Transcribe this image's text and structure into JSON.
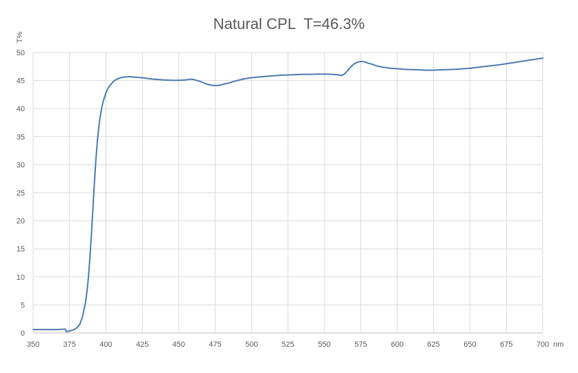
{
  "chart_data": {
    "type": "line",
    "title": "Natural CPL  T=46.3%",
    "ylabel": "T%",
    "xlabel": "nm",
    "xlim": [
      350,
      700
    ],
    "ylim": [
      0,
      50
    ],
    "x_ticks": [
      "350",
      "375",
      "400",
      "425",
      "450",
      "475",
      "500",
      "525",
      "550",
      "575",
      "600",
      "625",
      "650",
      "675",
      "700"
    ],
    "y_ticks": [
      "0",
      "5",
      "10",
      "15",
      "20",
      "25",
      "30",
      "35",
      "40",
      "45",
      "50"
    ],
    "x_tick_values": [
      350,
      375,
      400,
      425,
      450,
      475,
      500,
      525,
      550,
      575,
      600,
      625,
      650,
      675,
      700
    ],
    "y_tick_values": [
      0,
      5,
      10,
      15,
      20,
      25,
      30,
      35,
      40,
      45,
      50
    ],
    "grid": true,
    "line_color": "#4a7ab2",
    "grid_color": "#d9d9d9",
    "series": [
      {
        "x": [
          350,
          355,
          360,
          365,
          370,
          372,
          373,
          374,
          376,
          378,
          380,
          382,
          384,
          386,
          387,
          388,
          389,
          390,
          391,
          392,
          393,
          394,
          395,
          396,
          397,
          398,
          399,
          400,
          401,
          402,
          403,
          404,
          405,
          406,
          407,
          408,
          410,
          412,
          414,
          416,
          418,
          420,
          422,
          425,
          428,
          430,
          435,
          440,
          445,
          450,
          455,
          458,
          460,
          462,
          465,
          468,
          470,
          473,
          476,
          478,
          480,
          485,
          490,
          495,
          500,
          505,
          510,
          515,
          520,
          525,
          530,
          535,
          540,
          545,
          550,
          555,
          560,
          562,
          564,
          566,
          568,
          570,
          572,
          574,
          576,
          578,
          580,
          583,
          586,
          590,
          595,
          600,
          605,
          610,
          615,
          620,
          625,
          630,
          640,
          650,
          660,
          670,
          680,
          690,
          700
        ],
        "y": [
          0.6,
          0.6,
          0.6,
          0.6,
          0.65,
          0.7,
          0.2,
          0.3,
          0.4,
          0.6,
          0.9,
          1.5,
          3.0,
          5.5,
          7.5,
          10.0,
          13.5,
          17.5,
          22.0,
          26.5,
          30.5,
          34.0,
          36.5,
          38.5,
          40.0,
          41.2,
          42.0,
          42.8,
          43.4,
          43.9,
          44.2,
          44.5,
          44.8,
          45.0,
          45.15,
          45.3,
          45.5,
          45.6,
          45.65,
          45.7,
          45.65,
          45.6,
          45.55,
          45.5,
          45.4,
          45.3,
          45.2,
          45.1,
          45.05,
          45.05,
          45.1,
          45.25,
          45.2,
          45.05,
          44.8,
          44.5,
          44.3,
          44.15,
          44.1,
          44.15,
          44.3,
          44.6,
          45.0,
          45.3,
          45.5,
          45.65,
          45.75,
          45.85,
          45.95,
          46.0,
          46.05,
          46.1,
          46.1,
          46.15,
          46.15,
          46.1,
          46.0,
          45.9,
          46.2,
          46.8,
          47.4,
          47.9,
          48.2,
          48.35,
          48.4,
          48.3,
          48.1,
          47.9,
          47.6,
          47.4,
          47.2,
          47.1,
          47.0,
          46.95,
          46.9,
          46.85,
          46.85,
          46.9,
          47.0,
          47.2,
          47.5,
          47.8,
          48.2,
          48.6,
          49.0
        ]
      }
    ]
  }
}
